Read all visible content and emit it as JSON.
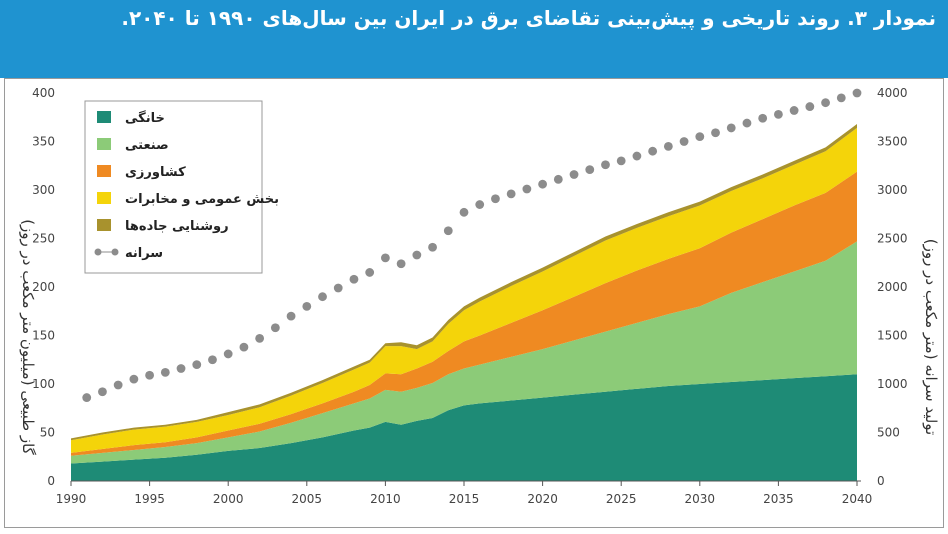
{
  "header": {
    "title": "نمودار ۳. روند تاریخی و پیش‌بینی تقاضای برق در ایران بین سال‌های ۱۹۹۰ تا ۲۰۴۰."
  },
  "colors": {
    "header_bg": "#1f93d0",
    "residential": "#1e8b76",
    "industrial": "#8ccb78",
    "agricultural": "#ef8a22",
    "public": "#f4d40a",
    "street_lighting": "#a8922d",
    "per_capita": "#8c8c8c"
  },
  "chart_data": {
    "type": "area",
    "x": [
      1990,
      1992,
      1994,
      1996,
      1998,
      2000,
      2002,
      2004,
      2006,
      2008,
      2009,
      2010,
      2011,
      2012,
      2013,
      2014,
      2015,
      2016,
      2018,
      2020,
      2022,
      2024,
      2026,
      2028,
      2030,
      2032,
      2034,
      2036,
      2038,
      2040
    ],
    "series": [
      {
        "name": "خانگی",
        "color_key": "residential",
        "values": [
          18,
          20,
          22,
          24,
          27,
          31,
          34,
          39,
          45,
          52,
          55,
          61,
          58,
          62,
          65,
          73,
          78,
          80,
          83,
          86,
          89,
          92,
          95,
          98,
          100,
          102,
          104,
          106,
          108,
          110
        ]
      },
      {
        "name": "صنعتی",
        "color_key": "industrial",
        "values": [
          8,
          9,
          10,
          11,
          12,
          14,
          17,
          21,
          25,
          28,
          30,
          33,
          34,
          34,
          36,
          37,
          38,
          40,
          45,
          50,
          56,
          62,
          68,
          74,
          80,
          92,
          101,
          110,
          119,
          137
        ]
      },
      {
        "name": "کشاورزی",
        "color_key": "agricultural",
        "values": [
          3,
          4,
          5,
          5,
          6,
          7,
          8,
          9,
          10,
          12,
          14,
          17,
          18,
          20,
          22,
          24,
          28,
          30,
          35,
          40,
          45,
          50,
          54,
          57,
          60,
          62,
          65,
          68,
          70,
          72
        ]
      },
      {
        "name": "بخش عمومی و مخابرات",
        "color_key": "public",
        "values": [
          13,
          15,
          16,
          16,
          16,
          16,
          17,
          19,
          21,
          23,
          23,
          28,
          29,
          20,
          21,
          28,
          32,
          35,
          38,
          40,
          42,
          44,
          44,
          44,
          44,
          43,
          42,
          42,
          43,
          45
        ]
      },
      {
        "name": "روشنایی جاده‌ها",
        "color_key": "street_lighting",
        "values": [
          2,
          2,
          2,
          2,
          2,
          3,
          3,
          3,
          3,
          3,
          3,
          3,
          4,
          4,
          4,
          4,
          4,
          4,
          4,
          4,
          4,
          4,
          4,
          4,
          4,
          4,
          4,
          4,
          4,
          4
        ]
      }
    ],
    "per_capita": {
      "name": "سرانه",
      "x": [
        1991,
        1992,
        1993,
        1994,
        1995,
        1996,
        1997,
        1998,
        1999,
        2000,
        2001,
        2002,
        2003,
        2004,
        2005,
        2006,
        2007,
        2008,
        2009,
        2010,
        2011,
        2012,
        2013,
        2014,
        2015,
        2016,
        2017,
        2018,
        2019,
        2020,
        2021,
        2022,
        2023,
        2024,
        2025,
        2026,
        2027,
        2028,
        2029,
        2030,
        2031,
        2032,
        2033,
        2034,
        2035,
        2036,
        2037,
        2038,
        2039,
        2040
      ],
      "values": [
        860,
        920,
        990,
        1050,
        1090,
        1120,
        1160,
        1200,
        1250,
        1310,
        1380,
        1470,
        1580,
        1700,
        1800,
        1900,
        1990,
        2080,
        2150,
        2300,
        2240,
        2330,
        2410,
        2580,
        2770,
        2850,
        2910,
        2960,
        3010,
        3060,
        3110,
        3160,
        3210,
        3260,
        3300,
        3350,
        3400,
        3450,
        3500,
        3550,
        3590,
        3640,
        3690,
        3740,
        3780,
        3820,
        3860,
        3900,
        3950,
        4000
      ]
    },
    "title": "نمودار ۳. روند تاریخی و پیش‌بینی تقاضای برق در ایران بین سال‌های ۱۹۹۰ تا ۲۰۴۰.",
    "ylabel": "گاز طبیعی (میلیون متر مکعب در روز)",
    "y2label": "تولید سرانه (متر مکعب در روز)",
    "xlim": [
      1990,
      2040
    ],
    "ylim": [
      0,
      400
    ],
    "y2lim": [
      0,
      4000
    ],
    "xticks": [
      1990,
      1995,
      2000,
      2005,
      2010,
      2015,
      2020,
      2025,
      2030,
      2035,
      2040
    ],
    "yticks": [
      0,
      50,
      100,
      150,
      200,
      250,
      300,
      350,
      400
    ],
    "y2ticks": [
      0,
      500,
      1000,
      1500,
      2000,
      2500,
      3000,
      3500,
      4000
    ],
    "legend_position": "top-left"
  }
}
